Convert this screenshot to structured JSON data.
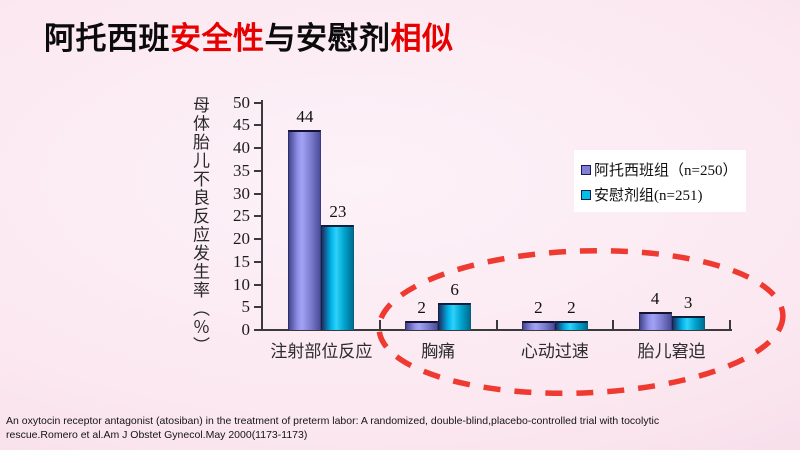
{
  "slide": {
    "title_segments": [
      {
        "text": "阿托西班",
        "color": "#0b0b0b"
      },
      {
        "text": "安全性",
        "color": "#e60000"
      },
      {
        "text": "与安慰剂",
        "color": "#0b0b0b"
      },
      {
        "text": "相似",
        "color": "#e60000"
      }
    ]
  },
  "chart_data": {
    "type": "bar",
    "categories": [
      "注射部位反应",
      "胸痛",
      "心动过速",
      "胎儿窘迫"
    ],
    "series": [
      {
        "name": "阿托西班组（n=250）",
        "color": "#8080d8",
        "values": [
          44,
          2,
          2,
          4
        ]
      },
      {
        "name": "安慰剂组(n=251)",
        "color": "#00c0e8",
        "values": [
          23,
          6,
          2,
          3
        ]
      }
    ],
    "ylabel": "母体胎儿不良反应发生率（％）",
    "ylim": [
      0,
      50
    ],
    "ytick_step": 5,
    "grid": false,
    "legend_position": "right",
    "annotation": "红色虚线椭圆圈出 胸痛、心动过速、胎儿窘迫 三组低发生率数据"
  },
  "colors": {
    "title_red": "#e60000",
    "axis": "#3a3a3a",
    "ellipse_stroke": "#ee3a30",
    "legend_background": "#ffffff"
  },
  "footer": {
    "line1": "An oxytocin receptor antagonist (atosiban) in the treatment of preterm labor: A randomized, double-blind,placebo-controlled trial with tocolytic",
    "line2": "rescue.Romero et al.Am J Obstet Gynecol.May 2000(1173-1173)"
  }
}
